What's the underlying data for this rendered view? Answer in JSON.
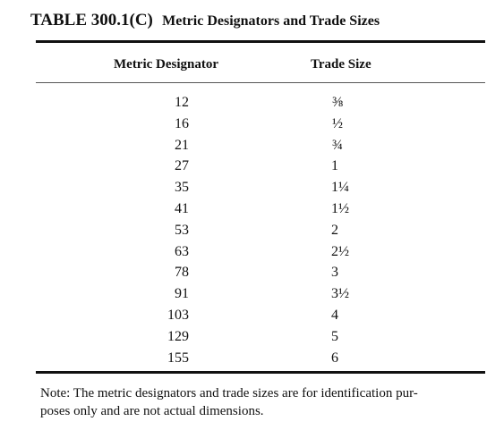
{
  "table": {
    "number": "TABLE 300.1(C)",
    "title": "Metric Designators and Trade Sizes",
    "headers": {
      "metric": "Metric Designator",
      "trade": "Trade Size"
    },
    "rows": [
      {
        "metric": "12",
        "trade": "⅜"
      },
      {
        "metric": "16",
        "trade": "½"
      },
      {
        "metric": "21",
        "trade": "¾"
      },
      {
        "metric": "27",
        "trade": "1"
      },
      {
        "metric": "35",
        "trade": "1¼"
      },
      {
        "metric": "41",
        "trade": "1½"
      },
      {
        "metric": "53",
        "trade": "2"
      },
      {
        "metric": "63",
        "trade": "2½"
      },
      {
        "metric": "78",
        "trade": "3"
      },
      {
        "metric": "91",
        "trade": "3½"
      },
      {
        "metric": "103",
        "trade": "4"
      },
      {
        "metric": "129",
        "trade": "5"
      },
      {
        "metric": "155",
        "trade": "6"
      }
    ],
    "note_lines": [
      "Note: The metric designators and trade sizes are for identification pur-",
      "poses only and are not actual dimensions."
    ]
  }
}
